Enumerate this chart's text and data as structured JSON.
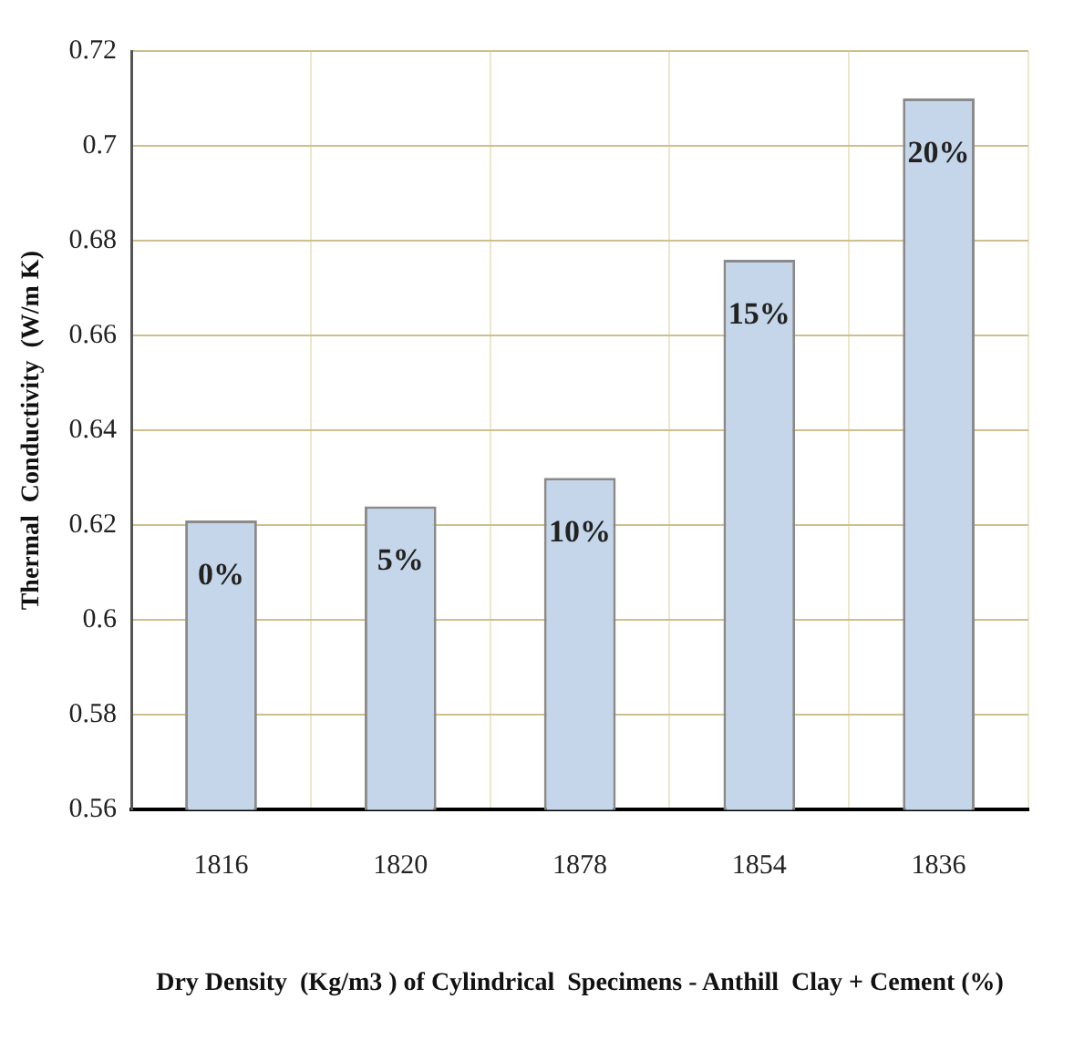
{
  "chart_data": {
    "type": "bar",
    "xlabel": "Dry Density  (Kg/m3 ) of Cylindrical  Specimens - Anthill  Clay + Cement (%)",
    "ylabel": "Thermal  Conductivity  (W/m K)",
    "categories": [
      "1816",
      "1820",
      "1878",
      "1854",
      "1836"
    ],
    "values": [
      0.621,
      0.624,
      0.63,
      0.676,
      0.71
    ],
    "color": "#c5d5ea",
    "ylim": [
      0.56,
      0.72
    ],
    "yticks": [
      0.56,
      0.58,
      0.6,
      0.62,
      0.64,
      0.66,
      0.68,
      0.7,
      0.72
    ],
    "grid": true,
    "annotations": [
      {
        "text": "0%",
        "x": "1816",
        "y": 0.621
      },
      {
        "text": "5%",
        "x": "1820",
        "y": 0.624
      },
      {
        "text": "10%",
        "x": "1878",
        "y": 0.63
      },
      {
        "text": "15%",
        "x": "1854",
        "y": 0.676
      },
      {
        "text": "20%",
        "x": "1836",
        "y": 0.71
      }
    ]
  }
}
